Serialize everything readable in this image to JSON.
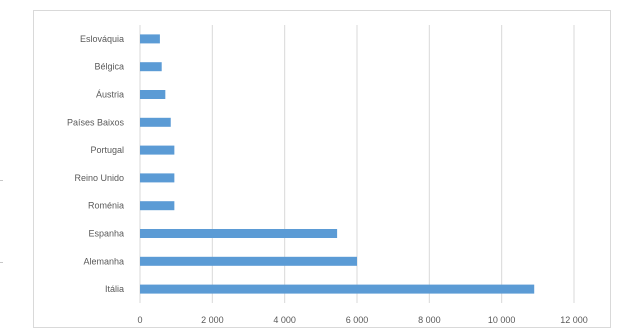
{
  "chart_data": {
    "type": "bar",
    "orientation": "horizontal",
    "categories": [
      "Itália",
      "Alemanha",
      "Espanha",
      "Roménia",
      "Reino Unido",
      "Portugal",
      "Países Baixos",
      "Áustria",
      "Bélgica",
      "Eslováquia"
    ],
    "values": [
      10900,
      6000,
      5450,
      950,
      950,
      950,
      850,
      700,
      600,
      550
    ],
    "x_ticks": [
      0,
      2000,
      4000,
      6000,
      8000,
      10000,
      12000
    ],
    "x_tick_labels": [
      "0",
      "2 000",
      "4 000",
      "6 000",
      "8 000",
      "10 000",
      "12 000"
    ],
    "xlim": [
      0,
      12000
    ],
    "title": "",
    "xlabel": "",
    "ylabel": "",
    "grid": "vertical",
    "legend": "none",
    "bar_color": "#5b9bd5",
    "grid_color": "#d9d9d9",
    "text_color": "#595959"
  }
}
